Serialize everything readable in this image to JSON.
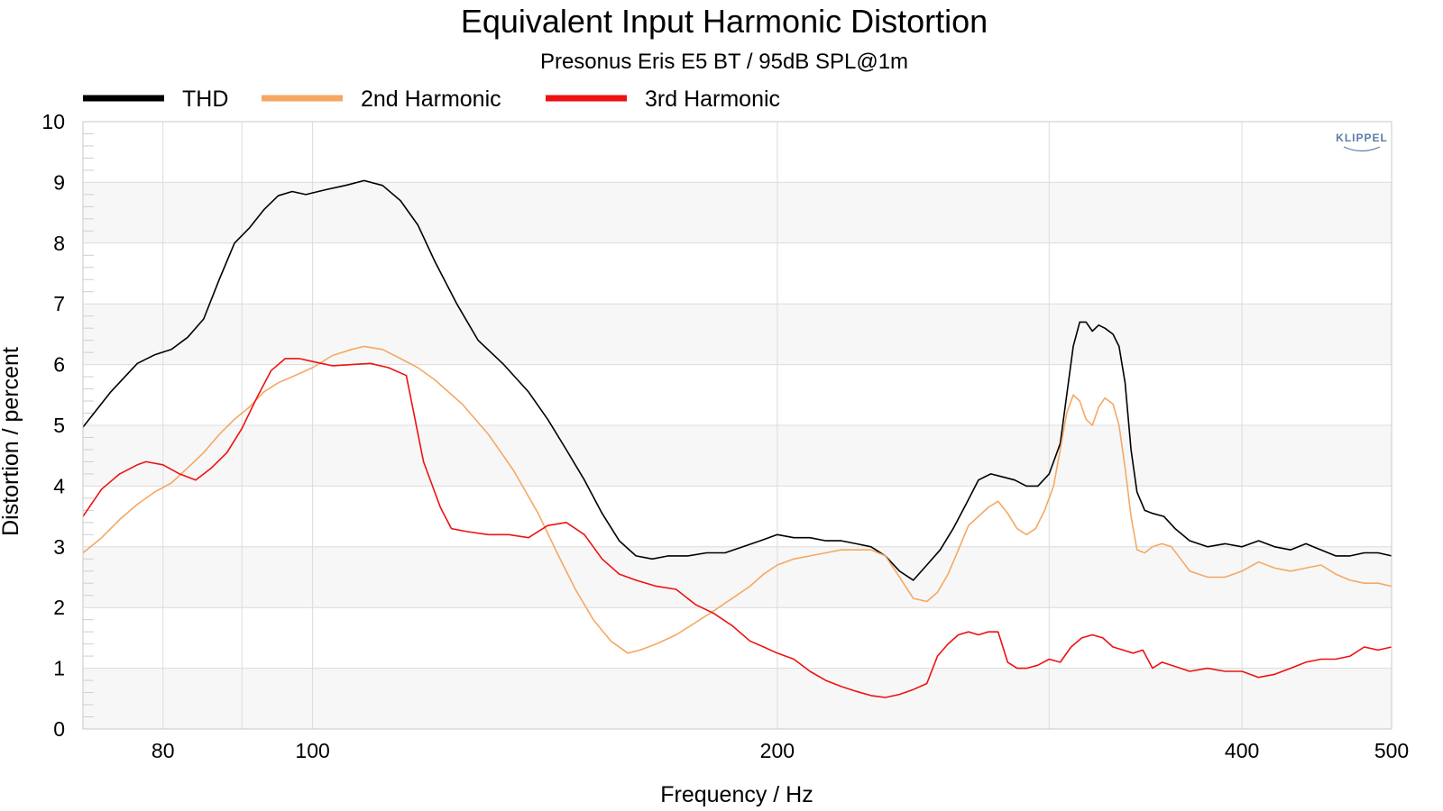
{
  "chart_data": {
    "type": "line",
    "title": "Equivalent Input Harmonic Distortion",
    "subtitle": "Presonus Eris E5 BT / 95dB SPL@1m",
    "xlabel": "Frequency / Hz",
    "ylabel": "Distortion / percent",
    "xscale": "log",
    "xlim": [
      71,
      500
    ],
    "ylim": [
      0,
      10
    ],
    "xticks": [
      80,
      100,
      200,
      400,
      500
    ],
    "yticks": [
      0,
      1,
      2,
      3,
      4,
      5,
      6,
      7,
      8,
      9,
      10
    ],
    "grid": true,
    "legend_position": "top-left",
    "brand_label": "KLIPPEL",
    "series": [
      {
        "name": "THD",
        "color": "#000000",
        "points": [
          [
            71,
            4.97
          ],
          [
            74,
            5.55
          ],
          [
            77,
            6.02
          ],
          [
            79,
            6.16
          ],
          [
            81,
            6.25
          ],
          [
            83,
            6.45
          ],
          [
            85,
            6.75
          ],
          [
            87,
            7.4
          ],
          [
            89,
            8.0
          ],
          [
            91,
            8.25
          ],
          [
            93,
            8.55
          ],
          [
            95,
            8.78
          ],
          [
            97,
            8.85
          ],
          [
            99,
            8.8
          ],
          [
            102,
            8.88
          ],
          [
            105,
            8.95
          ],
          [
            108,
            9.03
          ],
          [
            111,
            8.95
          ],
          [
            114,
            8.7
          ],
          [
            117,
            8.3
          ],
          [
            120,
            7.7
          ],
          [
            124,
            7.0
          ],
          [
            128,
            6.4
          ],
          [
            133,
            6.0
          ],
          [
            138,
            5.55
          ],
          [
            142,
            5.1
          ],
          [
            146,
            4.6
          ],
          [
            150,
            4.1
          ],
          [
            154,
            3.55
          ],
          [
            158,
            3.1
          ],
          [
            162,
            2.85
          ],
          [
            166,
            2.8
          ],
          [
            170,
            2.85
          ],
          [
            175,
            2.85
          ],
          [
            180,
            2.9
          ],
          [
            185,
            2.9
          ],
          [
            190,
            3.0
          ],
          [
            195,
            3.1
          ],
          [
            200,
            3.2
          ],
          [
            205,
            3.15
          ],
          [
            210,
            3.15
          ],
          [
            215,
            3.1
          ],
          [
            220,
            3.1
          ],
          [
            225,
            3.05
          ],
          [
            230,
            3.0
          ],
          [
            235,
            2.85
          ],
          [
            240,
            2.6
          ],
          [
            245,
            2.45
          ],
          [
            250,
            2.7
          ],
          [
            255,
            2.95
          ],
          [
            260,
            3.3
          ],
          [
            265,
            3.7
          ],
          [
            270,
            4.1
          ],
          [
            275,
            4.2
          ],
          [
            280,
            4.15
          ],
          [
            285,
            4.1
          ],
          [
            290,
            4.0
          ],
          [
            295,
            4.0
          ],
          [
            300,
            4.2
          ],
          [
            305,
            4.7
          ],
          [
            308,
            5.5
          ],
          [
            311,
            6.3
          ],
          [
            314,
            6.7
          ],
          [
            317,
            6.7
          ],
          [
            320,
            6.55
          ],
          [
            323,
            6.65
          ],
          [
            326,
            6.6
          ],
          [
            330,
            6.5
          ],
          [
            333,
            6.3
          ],
          [
            336,
            5.7
          ],
          [
            339,
            4.6
          ],
          [
            342,
            3.9
          ],
          [
            346,
            3.6
          ],
          [
            350,
            3.55
          ],
          [
            356,
            3.5
          ],
          [
            362,
            3.3
          ],
          [
            370,
            3.1
          ],
          [
            380,
            3.0
          ],
          [
            390,
            3.05
          ],
          [
            400,
            3.0
          ],
          [
            410,
            3.1
          ],
          [
            420,
            3.0
          ],
          [
            430,
            2.95
          ],
          [
            440,
            3.05
          ],
          [
            450,
            2.95
          ],
          [
            460,
            2.85
          ],
          [
            470,
            2.85
          ],
          [
            480,
            2.9
          ],
          [
            490,
            2.9
          ],
          [
            500,
            2.85
          ]
        ]
      },
      {
        "name": "2nd Harmonic",
        "color": "#f5a863",
        "points": [
          [
            71,
            2.9
          ],
          [
            73,
            3.15
          ],
          [
            75,
            3.45
          ],
          [
            77,
            3.7
          ],
          [
            79,
            3.9
          ],
          [
            81,
            4.05
          ],
          [
            83,
            4.3
          ],
          [
            85,
            4.55
          ],
          [
            87,
            4.85
          ],
          [
            89,
            5.1
          ],
          [
            91,
            5.3
          ],
          [
            93,
            5.55
          ],
          [
            95,
            5.7
          ],
          [
            97,
            5.8
          ],
          [
            100,
            5.95
          ],
          [
            103,
            6.15
          ],
          [
            106,
            6.25
          ],
          [
            108,
            6.3
          ],
          [
            111,
            6.25
          ],
          [
            114,
            6.1
          ],
          [
            117,
            5.95
          ],
          [
            120,
            5.75
          ],
          [
            125,
            5.35
          ],
          [
            130,
            4.85
          ],
          [
            135,
            4.25
          ],
          [
            140,
            3.55
          ],
          [
            144,
            2.9
          ],
          [
            148,
            2.3
          ],
          [
            152,
            1.8
          ],
          [
            156,
            1.45
          ],
          [
            160,
            1.25
          ],
          [
            163,
            1.3
          ],
          [
            167,
            1.4
          ],
          [
            172,
            1.55
          ],
          [
            177,
            1.75
          ],
          [
            182,
            1.95
          ],
          [
            187,
            2.15
          ],
          [
            192,
            2.35
          ],
          [
            196,
            2.55
          ],
          [
            200,
            2.7
          ],
          [
            205,
            2.8
          ],
          [
            210,
            2.85
          ],
          [
            215,
            2.9
          ],
          [
            220,
            2.95
          ],
          [
            225,
            2.95
          ],
          [
            230,
            2.95
          ],
          [
            235,
            2.85
          ],
          [
            240,
            2.5
          ],
          [
            245,
            2.15
          ],
          [
            250,
            2.1
          ],
          [
            254,
            2.25
          ],
          [
            258,
            2.55
          ],
          [
            262,
            2.95
          ],
          [
            266,
            3.35
          ],
          [
            270,
            3.5
          ],
          [
            274,
            3.65
          ],
          [
            278,
            3.75
          ],
          [
            282,
            3.55
          ],
          [
            286,
            3.3
          ],
          [
            290,
            3.2
          ],
          [
            294,
            3.3
          ],
          [
            298,
            3.6
          ],
          [
            302,
            4.0
          ],
          [
            305,
            4.6
          ],
          [
            308,
            5.2
          ],
          [
            311,
            5.5
          ],
          [
            314,
            5.4
          ],
          [
            317,
            5.1
          ],
          [
            320,
            5.0
          ],
          [
            323,
            5.3
          ],
          [
            326,
            5.45
          ],
          [
            330,
            5.35
          ],
          [
            333,
            5.0
          ],
          [
            336,
            4.3
          ],
          [
            339,
            3.5
          ],
          [
            342,
            2.95
          ],
          [
            346,
            2.9
          ],
          [
            350,
            3.0
          ],
          [
            355,
            3.05
          ],
          [
            360,
            3.0
          ],
          [
            365,
            2.8
          ],
          [
            370,
            2.6
          ],
          [
            380,
            2.5
          ],
          [
            390,
            2.5
          ],
          [
            400,
            2.6
          ],
          [
            410,
            2.75
          ],
          [
            420,
            2.65
          ],
          [
            430,
            2.6
          ],
          [
            440,
            2.65
          ],
          [
            450,
            2.7
          ],
          [
            460,
            2.55
          ],
          [
            470,
            2.45
          ],
          [
            480,
            2.4
          ],
          [
            490,
            2.4
          ],
          [
            500,
            2.35
          ]
        ]
      },
      {
        "name": "3rd Harmonic",
        "color": "#ee1111",
        "points": [
          [
            71,
            3.5
          ],
          [
            73,
            3.95
          ],
          [
            75,
            4.2
          ],
          [
            77,
            4.35
          ],
          [
            78,
            4.4
          ],
          [
            80,
            4.35
          ],
          [
            82,
            4.2
          ],
          [
            84,
            4.1
          ],
          [
            86,
            4.3
          ],
          [
            88,
            4.55
          ],
          [
            90,
            4.95
          ],
          [
            92,
            5.45
          ],
          [
            94,
            5.9
          ],
          [
            96,
            6.1
          ],
          [
            98,
            6.1
          ],
          [
            100,
            6.05
          ],
          [
            103,
            5.98
          ],
          [
            106,
            6.0
          ],
          [
            109,
            6.02
          ],
          [
            112,
            5.95
          ],
          [
            115,
            5.82
          ],
          [
            118,
            4.4
          ],
          [
            121,
            3.65
          ],
          [
            123,
            3.3
          ],
          [
            126,
            3.25
          ],
          [
            130,
            3.2
          ],
          [
            134,
            3.2
          ],
          [
            138,
            3.15
          ],
          [
            142,
            3.35
          ],
          [
            146,
            3.4
          ],
          [
            150,
            3.2
          ],
          [
            154,
            2.8
          ],
          [
            158,
            2.55
          ],
          [
            162,
            2.45
          ],
          [
            167,
            2.35
          ],
          [
            172,
            2.3
          ],
          [
            177,
            2.05
          ],
          [
            182,
            1.9
          ],
          [
            187,
            1.7
          ],
          [
            192,
            1.45
          ],
          [
            196,
            1.35
          ],
          [
            200,
            1.25
          ],
          [
            205,
            1.15
          ],
          [
            210,
            0.95
          ],
          [
            215,
            0.8
          ],
          [
            220,
            0.7
          ],
          [
            225,
            0.62
          ],
          [
            230,
            0.55
          ],
          [
            235,
            0.52
          ],
          [
            240,
            0.57
          ],
          [
            245,
            0.65
          ],
          [
            250,
            0.75
          ],
          [
            254,
            1.2
          ],
          [
            258,
            1.4
          ],
          [
            262,
            1.55
          ],
          [
            266,
            1.6
          ],
          [
            270,
            1.55
          ],
          [
            274,
            1.6
          ],
          [
            278,
            1.6
          ],
          [
            282,
            1.1
          ],
          [
            286,
            1.0
          ],
          [
            290,
            1.0
          ],
          [
            295,
            1.05
          ],
          [
            300,
            1.15
          ],
          [
            305,
            1.1
          ],
          [
            310,
            1.35
          ],
          [
            315,
            1.5
          ],
          [
            320,
            1.55
          ],
          [
            325,
            1.5
          ],
          [
            330,
            1.35
          ],
          [
            335,
            1.3
          ],
          [
            340,
            1.25
          ],
          [
            345,
            1.3
          ],
          [
            350,
            1.0
          ],
          [
            355,
            1.1
          ],
          [
            360,
            1.05
          ],
          [
            365,
            1.0
          ],
          [
            370,
            0.95
          ],
          [
            380,
            1.0
          ],
          [
            390,
            0.95
          ],
          [
            400,
            0.95
          ],
          [
            410,
            0.85
          ],
          [
            420,
            0.9
          ],
          [
            430,
            1.0
          ],
          [
            440,
            1.1
          ],
          [
            450,
            1.15
          ],
          [
            460,
            1.15
          ],
          [
            470,
            1.2
          ],
          [
            480,
            1.35
          ],
          [
            490,
            1.3
          ],
          [
            500,
            1.35
          ]
        ]
      }
    ]
  }
}
